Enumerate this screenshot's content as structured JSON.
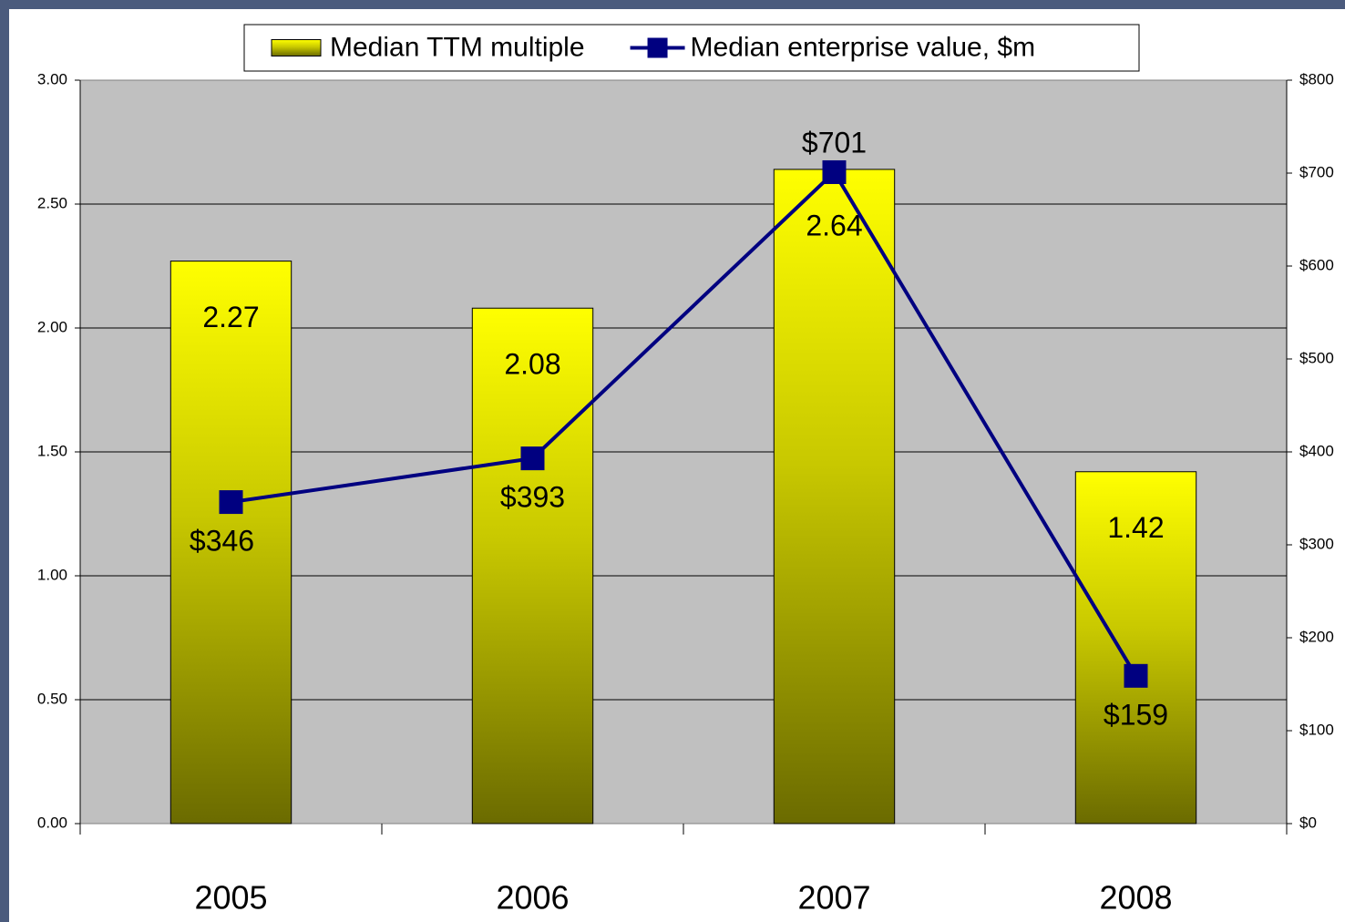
{
  "chart_data": {
    "type": "bar",
    "categories": [
      "2005",
      "2006",
      "2007",
      "2008"
    ],
    "series": [
      {
        "name": "Median TTM multiple",
        "type": "bar",
        "color": "#ffff00",
        "values": [
          2.27,
          2.08,
          2.64,
          1.42
        ]
      },
      {
        "name": "Median enterprise value, $m",
        "type": "line",
        "axis": "y2",
        "color": "#000080",
        "values": [
          346,
          393,
          701,
          159
        ],
        "value_labels": [
          "$346",
          "$393",
          "$701",
          "$159"
        ]
      }
    ],
    "ylim": [
      0,
      3
    ],
    "yticks": [
      {
        "value": 0,
        "label": "0.00"
      },
      {
        "value": 0.5,
        "label": "0.50"
      },
      {
        "value": 1,
        "label": "1.00"
      },
      {
        "value": 1.5,
        "label": "1.50"
      },
      {
        "value": 2,
        "label": "2.00"
      },
      {
        "value": 2.5,
        "label": "2.50"
      },
      {
        "value": 3,
        "label": "3.00"
      }
    ],
    "y2lim": [
      0,
      800
    ],
    "y2ticks": [
      {
        "value": 0,
        "label": "$0"
      },
      {
        "value": 100,
        "label": "$100"
      },
      {
        "value": 200,
        "label": "$200"
      },
      {
        "value": 300,
        "label": "$300"
      },
      {
        "value": 400,
        "label": "$400"
      },
      {
        "value": 500,
        "label": "$500"
      },
      {
        "value": 600,
        "label": "$600"
      },
      {
        "value": 700,
        "label": "$700"
      },
      {
        "value": 800,
        "label": "$800"
      }
    ],
    "grid": true,
    "legend": "top"
  }
}
